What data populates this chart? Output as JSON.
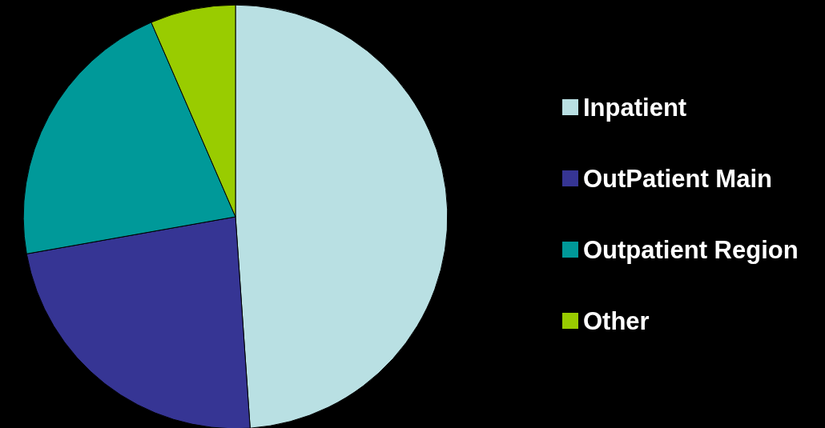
{
  "chart_data": {
    "type": "pie",
    "categories": [
      "Inpatient",
      "OutPatient Main",
      "Outpatient Region",
      "Other"
    ],
    "values": [
      48.9,
      23.3,
      21.3,
      6.5
    ],
    "colors": [
      "#b9e0e3",
      "#363594",
      "#009999",
      "#99cc00"
    ],
    "legend": "right"
  }
}
